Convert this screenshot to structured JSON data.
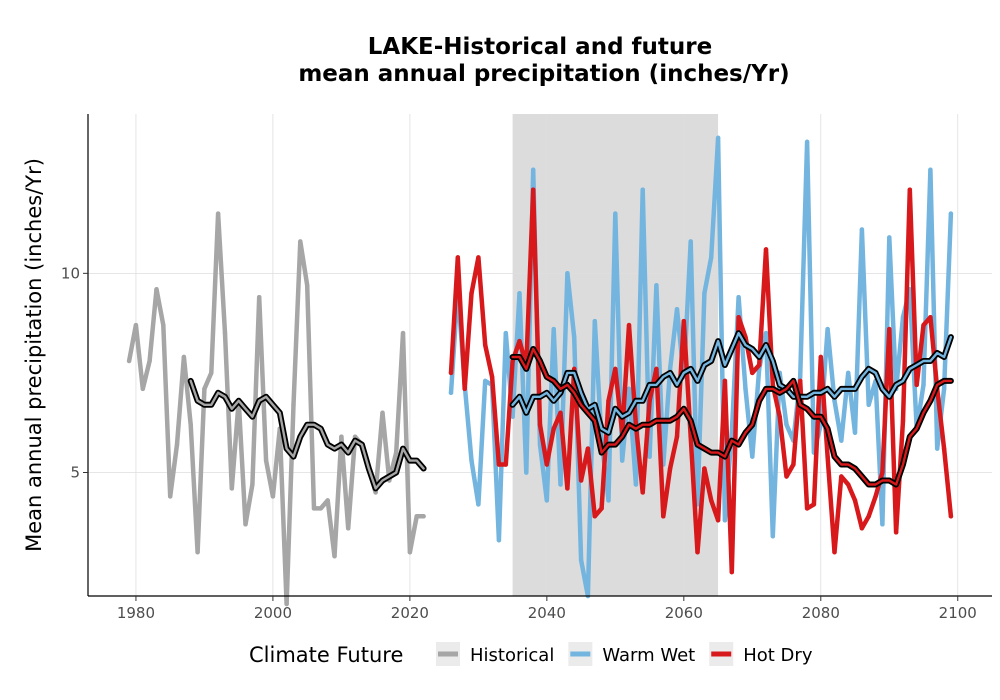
{
  "chart_data": {
    "type": "line",
    "title": [
      "LAKE-Historical and future",
      "mean annual precipitation (inches/Yr)"
    ],
    "xlabel": "",
    "ylabel": "Mean annual precipitation (inches/Yr)",
    "xlim": [
      1973,
      2105
    ],
    "ylim": [
      1.9,
      14.0
    ],
    "x_ticks": [
      1980,
      2000,
      2020,
      2040,
      2060,
      2080,
      2100
    ],
    "y_ticks": [
      5,
      10
    ],
    "grid": true,
    "shaded_period": [
      2035,
      2065
    ],
    "legend": {
      "title": "Climate Future",
      "position": "bottom",
      "entries": [
        {
          "name": "Historical",
          "color": "#a6a6a6"
        },
        {
          "name": "Warm Wet",
          "color": "#74b5df"
        },
        {
          "name": "Hot Dry",
          "color": "#d7191c"
        }
      ]
    },
    "series": [
      {
        "name": "Historical",
        "color": "#a6a6a6",
        "x": [
          1979,
          1980,
          1981,
          1982,
          1983,
          1984,
          1985,
          1986,
          1987,
          1988,
          1989,
          1990,
          1991,
          1992,
          1993,
          1994,
          1995,
          1996,
          1997,
          1998,
          1999,
          2000,
          2001,
          2002,
          2003,
          2004,
          2005,
          2006,
          2007,
          2008,
          2009,
          2010,
          2011,
          2012,
          2013,
          2014,
          2015,
          2016,
          2017,
          2018,
          2019,
          2020,
          2021,
          2022
        ],
        "values": [
          7.8,
          8.7,
          7.1,
          7.8,
          9.6,
          8.7,
          4.4,
          5.7,
          7.9,
          6.2,
          3.0,
          7.1,
          7.5,
          11.5,
          8.5,
          4.6,
          6.8,
          3.7,
          4.7,
          9.4,
          5.3,
          4.4,
          6.1,
          1.7,
          6.7,
          10.8,
          9.7,
          4.1,
          4.1,
          4.3,
          2.9,
          5.9,
          3.6,
          5.9,
          5.7,
          5.1,
          4.5,
          6.5,
          4.8,
          5.5,
          8.5,
          3.0,
          3.9,
          3.9
        ]
      },
      {
        "name": "Warm Wet",
        "color": "#74b5df",
        "x": [
          2026,
          2027,
          2028,
          2029,
          2030,
          2031,
          2032,
          2033,
          2034,
          2035,
          2036,
          2037,
          2038,
          2039,
          2040,
          2041,
          2042,
          2043,
          2044,
          2045,
          2046,
          2047,
          2048,
          2049,
          2050,
          2051,
          2052,
          2053,
          2054,
          2055,
          2056,
          2057,
          2058,
          2059,
          2060,
          2061,
          2062,
          2063,
          2064,
          2065,
          2066,
          2067,
          2068,
          2069,
          2070,
          2071,
          2072,
          2073,
          2074,
          2075,
          2076,
          2077,
          2078,
          2079,
          2080,
          2081,
          2082,
          2083,
          2084,
          2085,
          2086,
          2087,
          2088,
          2089,
          2090,
          2091,
          2092,
          2093,
          2094,
          2095,
          2096,
          2097,
          2098,
          2099
        ],
        "values": [
          7.0,
          9.6,
          7.2,
          5.3,
          4.2,
          7.3,
          7.2,
          3.3,
          8.5,
          6.4,
          9.5,
          5.0,
          12.6,
          5.7,
          4.3,
          8.6,
          4.7,
          10.0,
          8.4,
          2.8,
          1.9,
          8.8,
          5.8,
          4.3,
          11.5,
          5.3,
          7.1,
          4.7,
          12.1,
          5.4,
          9.7,
          5.2,
          7.6,
          9.1,
          7.4,
          10.8,
          4.2,
          9.5,
          10.4,
          13.4,
          3.8,
          6.0,
          9.4,
          7.1,
          5.4,
          7.6,
          8.5,
          3.4,
          7.5,
          6.2,
          5.8,
          7.4,
          13.3,
          5.5,
          6.2,
          8.6,
          6.8,
          5.8,
          7.5,
          6.0,
          11.1,
          6.7,
          7.3,
          3.7,
          10.9,
          7.1,
          8.9,
          9.6,
          6.1,
          7.2,
          12.6,
          5.6,
          7.1,
          11.5
        ]
      },
      {
        "name": "Hot Dry",
        "color": "#d7191c",
        "x": [
          2026,
          2027,
          2028,
          2029,
          2030,
          2031,
          2032,
          2033,
          2034,
          2035,
          2036,
          2037,
          2038,
          2039,
          2040,
          2041,
          2042,
          2043,
          2044,
          2045,
          2046,
          2047,
          2048,
          2049,
          2050,
          2051,
          2052,
          2053,
          2054,
          2055,
          2056,
          2057,
          2058,
          2059,
          2060,
          2061,
          2062,
          2063,
          2064,
          2065,
          2066,
          2067,
          2068,
          2069,
          2070,
          2071,
          2072,
          2073,
          2074,
          2075,
          2076,
          2077,
          2078,
          2079,
          2080,
          2081,
          2082,
          2083,
          2084,
          2085,
          2086,
          2087,
          2088,
          2089,
          2090,
          2091,
          2092,
          2093,
          2094,
          2095,
          2096,
          2097,
          2098,
          2099
        ],
        "values": [
          7.5,
          10.4,
          7.1,
          9.5,
          10.4,
          8.2,
          7.4,
          5.2,
          5.2,
          7.8,
          8.3,
          7.7,
          12.1,
          6.2,
          5.2,
          6.1,
          6.5,
          4.6,
          7.6,
          4.8,
          5.6,
          3.9,
          4.1,
          6.8,
          7.6,
          6.0,
          8.7,
          6.2,
          4.5,
          6.8,
          7.6,
          3.9,
          5.1,
          5.9,
          8.8,
          5.9,
          3.0,
          5.1,
          4.3,
          3.8,
          7.3,
          2.5,
          8.9,
          8.4,
          7.5,
          7.7,
          10.6,
          7.2,
          6.4,
          4.9,
          5.2,
          7.3,
          4.1,
          4.2,
          7.9,
          5.4,
          3.0,
          4.9,
          4.7,
          4.3,
          3.6,
          3.9,
          4.4,
          5.0,
          8.6,
          3.5,
          6.3,
          12.1,
          7.2,
          8.7,
          8.9,
          7.1,
          5.6,
          3.9
        ]
      },
      {
        "name": "",
        "color": "#000000",
        "x": [
          1988,
          1989,
          1990,
          1991,
          1992,
          1993,
          1994,
          1995,
          1996,
          1997,
          1998,
          1999,
          2000,
          2001,
          2002,
          2003,
          2004,
          2005,
          2006,
          2007,
          2008,
          2009,
          2010,
          2011,
          2012,
          2013,
          2014,
          2015,
          2016,
          2017,
          2018,
          2019,
          2020,
          2021,
          2022
        ],
        "values": [
          7.3,
          6.8,
          6.7,
          6.7,
          7.0,
          6.9,
          6.6,
          6.8,
          6.6,
          6.4,
          6.8,
          6.9,
          6.7,
          6.5,
          5.6,
          5.4,
          5.9,
          6.2,
          6.2,
          6.1,
          5.7,
          5.6,
          5.7,
          5.5,
          5.8,
          5.7,
          5.1,
          4.6,
          4.8,
          4.9,
          5.0,
          5.6,
          5.3,
          5.3,
          5.1
        ]
      },
      {
        "name": "",
        "color": "#000000",
        "x": [
          2035,
          2036,
          2037,
          2038,
          2039,
          2040,
          2041,
          2042,
          2043,
          2044,
          2045,
          2046,
          2047,
          2048,
          2049,
          2050,
          2051,
          2052,
          2053,
          2054,
          2055,
          2056,
          2057,
          2058,
          2059,
          2060,
          2061,
          2062,
          2063,
          2064,
          2065,
          2066,
          2067,
          2068,
          2069,
          2070,
          2071,
          2072,
          2073,
          2074,
          2075,
          2076,
          2077,
          2078,
          2079,
          2080,
          2081,
          2082,
          2083,
          2084,
          2085,
          2086,
          2087,
          2088,
          2089,
          2090,
          2091,
          2092,
          2093,
          2094,
          2095,
          2096,
          2097,
          2098,
          2099
        ],
        "values": [
          6.7,
          6.9,
          6.5,
          6.9,
          6.9,
          7.0,
          6.8,
          7.0,
          7.5,
          7.5,
          7.0,
          6.6,
          6.7,
          6.1,
          6.0,
          6.6,
          6.4,
          6.5,
          6.8,
          6.8,
          7.2,
          7.2,
          7.4,
          7.5,
          7.2,
          7.5,
          7.6,
          7.3,
          7.7,
          7.8,
          8.3,
          7.7,
          8.1,
          8.5,
          8.2,
          8.1,
          7.9,
          8.2,
          7.8,
          7.2,
          7.1,
          6.9,
          6.9,
          6.9,
          7.0,
          7.0,
          7.1,
          6.9,
          7.1,
          7.1,
          7.1,
          7.4,
          7.6,
          7.5,
          7.1,
          6.9,
          7.2,
          7.3,
          7.6,
          7.7,
          7.8,
          7.8,
          8.0,
          7.9,
          8.4
        ]
      },
      {
        "name": "",
        "color": "#000000",
        "x": [
          2035,
          2036,
          2037,
          2038,
          2039,
          2040,
          2041,
          2042,
          2043,
          2044,
          2045,
          2046,
          2047,
          2048,
          2049,
          2050,
          2051,
          2052,
          2053,
          2054,
          2055,
          2056,
          2057,
          2058,
          2059,
          2060,
          2061,
          2062,
          2063,
          2064,
          2065,
          2066,
          2067,
          2068,
          2069,
          2070,
          2071,
          2072,
          2073,
          2074,
          2075,
          2076,
          2077,
          2078,
          2079,
          2080,
          2081,
          2082,
          2083,
          2084,
          2085,
          2086,
          2087,
          2088,
          2089,
          2090,
          2091,
          2092,
          2093,
          2094,
          2095,
          2096,
          2097,
          2098,
          2099
        ],
        "values": [
          7.9,
          7.9,
          7.6,
          8.1,
          7.8,
          7.4,
          7.3,
          7.1,
          7.2,
          7.0,
          6.7,
          6.5,
          6.3,
          5.5,
          5.7,
          5.7,
          5.9,
          6.2,
          6.1,
          6.2,
          6.2,
          6.3,
          6.3,
          6.3,
          6.4,
          6.6,
          6.3,
          5.7,
          5.6,
          5.5,
          5.5,
          5.4,
          5.8,
          5.7,
          6.0,
          6.2,
          6.8,
          7.1,
          7.1,
          7.0,
          7.1,
          7.3,
          6.7,
          6.6,
          6.4,
          6.4,
          6.1,
          5.4,
          5.2,
          5.2,
          5.1,
          4.9,
          4.7,
          4.7,
          4.8,
          4.8,
          4.7,
          5.2,
          5.9,
          6.1,
          6.5,
          6.8,
          7.2,
          7.3,
          7.3
        ]
      }
    ]
  }
}
